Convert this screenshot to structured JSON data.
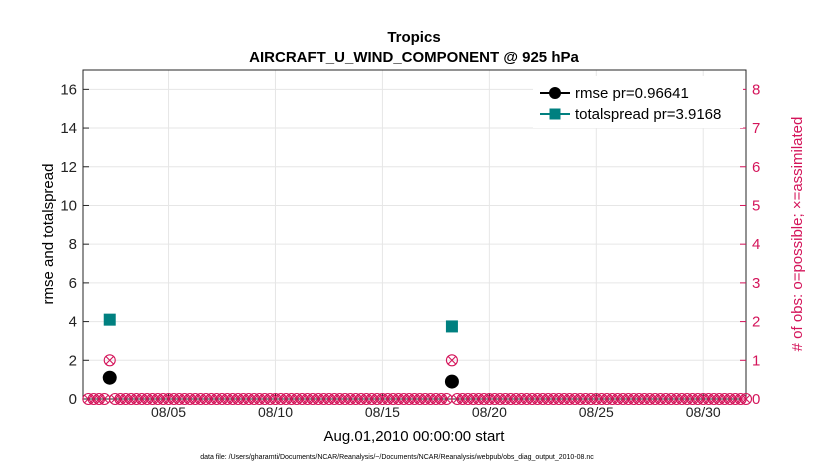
{
  "chart_data": {
    "type": "line",
    "title": "Tropics",
    "subtitle": "AIRCRAFT_U_WIND_COMPONENT @ 925 hPa",
    "xlabel": "Aug.01,2010 00:00:00 start",
    "ylabel": "rmse and totalspread",
    "ylabel_right": "# of obs: o=possible; ×=assimilated",
    "xlim": [
      1,
      32
    ],
    "ylim": [
      0,
      17
    ],
    "ylim_right": [
      0,
      8.5
    ],
    "x_ticks": [
      5,
      10,
      15,
      20,
      25,
      30
    ],
    "x_tick_labels": [
      "08/05",
      "08/10",
      "08/15",
      "08/20",
      "08/25",
      "08/30"
    ],
    "y_ticks": [
      0,
      2,
      4,
      6,
      8,
      10,
      12,
      14,
      16
    ],
    "y_tick_labels": [
      "0",
      "2",
      "4",
      "6",
      "8",
      "10",
      "12",
      "14",
      "16"
    ],
    "y_right_ticks": [
      0,
      1,
      2,
      3,
      4,
      5,
      6,
      7,
      8
    ],
    "y_right_tick_labels": [
      "0",
      "1",
      "2",
      "3",
      "4",
      "5",
      "6",
      "7",
      "8"
    ],
    "grid": true,
    "legend_position": "top-right",
    "series": [
      {
        "name": "rmse pr=0.96641",
        "color": "#000000",
        "marker": "circle",
        "x": [
          2.25,
          18.25
        ],
        "values": [
          1.1,
          0.9
        ]
      },
      {
        "name": "totalspread pr=3.9168",
        "color": "#008080",
        "marker": "square",
        "x": [
          2.25,
          18.25
        ],
        "values": [
          4.1,
          3.75
        ]
      }
    ],
    "obs_count": {
      "color": "#d4145a",
      "x_start": 1.25,
      "x_step": 0.25,
      "x_end": 32,
      "nonzero": [
        {
          "x": 2.25,
          "possible": 1,
          "assimilated": 1
        },
        {
          "x": 18.25,
          "possible": 1,
          "assimilated": 1
        }
      ]
    },
    "footnote": "data file: /Users/gharamti/Documents/NCAR/Reanalysis/~/Documents/NCAR/Reanalysis/webpub/obs_diag_output_2010-08.nc"
  }
}
